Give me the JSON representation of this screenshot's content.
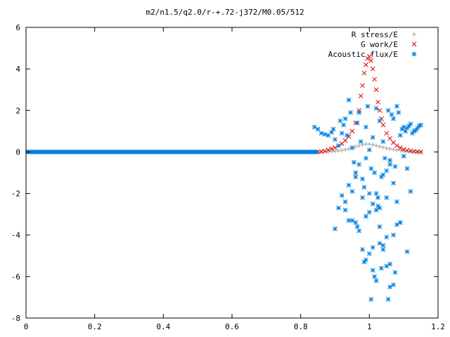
{
  "chart_data": {
    "type": "scatter",
    "title": "m2/n1.5/q2.0/r-+.72-j372/M0.05/512",
    "xlabel": "",
    "ylabel": "",
    "xlim": [
      0,
      1.2
    ],
    "ylim": [
      -8,
      6
    ],
    "x_ticks": [
      "0",
      "0.2",
      "0.4",
      "0.6",
      "0.8",
      "1",
      "1.2"
    ],
    "y_ticks": [
      "6",
      "4",
      "2",
      "0",
      "-2",
      "-4",
      "-6",
      "-8"
    ],
    "x_tick_values": [
      0,
      0.2,
      0.4,
      0.6,
      0.8,
      1.0,
      1.2
    ],
    "y_tick_values": [
      6,
      4,
      2,
      0,
      -2,
      -4,
      -6,
      -8
    ],
    "grid": false,
    "legend_position": "top-right",
    "series": [
      {
        "name": "R stress/E",
        "marker": "+",
        "color": "#a0a0a0",
        "x": [
          0.85,
          0.86,
          0.87,
          0.88,
          0.89,
          0.9,
          0.91,
          0.92,
          0.93,
          0.94,
          0.95,
          0.96,
          0.97,
          0.98,
          0.99,
          1.0,
          1.01,
          1.02,
          1.03,
          1.04,
          1.05,
          1.06,
          1.07,
          1.08,
          1.09,
          1.1,
          1.11,
          1.12,
          1.13,
          1.14,
          1.15
        ],
        "y": [
          0.0,
          0.0,
          0.0,
          0.01,
          0.02,
          0.03,
          0.05,
          0.08,
          0.11,
          0.15,
          0.2,
          0.25,
          0.3,
          0.35,
          0.38,
          0.38,
          0.35,
          0.3,
          0.26,
          0.22,
          0.18,
          0.15,
          0.12,
          0.09,
          0.07,
          0.05,
          0.03,
          0.02,
          0.01,
          0.0,
          0.0
        ]
      },
      {
        "name": "G work/E",
        "marker": "x",
        "color": "#e00000",
        "x": [
          0.85,
          0.86,
          0.87,
          0.88,
          0.89,
          0.9,
          0.91,
          0.92,
          0.93,
          0.94,
          0.95,
          0.96,
          0.97,
          0.975,
          0.98,
          0.985,
          0.99,
          0.995,
          1.0,
          1.005,
          1.01,
          1.015,
          1.02,
          1.025,
          1.03,
          1.035,
          1.04,
          1.05,
          1.06,
          1.07,
          1.08,
          1.09,
          1.1,
          1.11,
          1.12,
          1.13,
          1.14,
          1.15
        ],
        "y": [
          0.0,
          0.02,
          0.05,
          0.1,
          0.15,
          0.2,
          0.3,
          0.4,
          0.55,
          0.75,
          1.0,
          1.4,
          2.0,
          2.7,
          3.2,
          3.8,
          4.2,
          4.5,
          4.6,
          4.4,
          4.0,
          3.5,
          3.0,
          2.4,
          2.0,
          1.6,
          1.3,
          0.9,
          0.65,
          0.45,
          0.3,
          0.2,
          0.12,
          0.08,
          0.05,
          0.03,
          0.01,
          0.0
        ]
      },
      {
        "name": "Acoustic flux/E",
        "marker": "*",
        "color": "#0080e0",
        "baseline": {
          "from": 0.0,
          "to": 0.85,
          "y": 0.0
        },
        "x": [
          0.84,
          0.85,
          0.86,
          0.87,
          0.88,
          0.89,
          0.895,
          0.9,
          0.91,
          0.915,
          0.92,
          0.925,
          0.93,
          0.935,
          0.94,
          0.945,
          0.95,
          0.955,
          0.96,
          0.965,
          0.97,
          0.975,
          0.98,
          0.985,
          0.99,
          0.995,
          1.0,
          1.005,
          1.01,
          1.015,
          1.02,
          1.025,
          1.03,
          1.035,
          1.04,
          1.045,
          1.05,
          1.055,
          1.06,
          1.065,
          1.07,
          1.075,
          1.08,
          1.085,
          1.09,
          1.095,
          1.1,
          1.105,
          1.11,
          1.115,
          1.12,
          1.125,
          1.13,
          1.135,
          1.14,
          1.145,
          1.15,
          0.9,
          0.91,
          0.92,
          0.93,
          0.94,
          0.95,
          0.96,
          0.97,
          0.98,
          0.99,
          1.0,
          1.01,
          1.02,
          1.03,
          1.04,
          1.05,
          1.06,
          1.07,
          1.08,
          1.09,
          1.1,
          1.11,
          1.12,
          0.93,
          0.95,
          0.97,
          0.99,
          1.01,
          1.03,
          1.05,
          1.07,
          1.09,
          1.11,
          0.94,
          0.96,
          0.98,
          1.0,
          1.02,
          1.04,
          1.06,
          1.08,
          0.99,
          1.01,
          1.03,
          1.05,
          1.07,
          1.0,
          1.02,
          1.04,
          1.06,
          1.005,
          1.055,
          0.985,
          1.035,
          0.965,
          1.075,
          1.015,
          1.025
        ],
        "y": [
          1.2,
          1.1,
          0.9,
          0.85,
          0.8,
          0.95,
          1.1,
          0.6,
          0.3,
          1.5,
          0.9,
          1.3,
          1.6,
          0.8,
          2.5,
          1.9,
          0.2,
          -0.5,
          -1.0,
          1.4,
          1.9,
          0.5,
          -1.3,
          -1.7,
          1.2,
          2.2,
          0.1,
          -0.8,
          0.7,
          -1.0,
          2.1,
          -2.2,
          1.5,
          -1.2,
          0.5,
          -0.3,
          -0.9,
          2.0,
          -0.4,
          1.8,
          1.6,
          -0.7,
          2.2,
          1.9,
          0.8,
          1.1,
          1.2,
          1.0,
          1.15,
          1.25,
          1.35,
          0.9,
          1.0,
          1.05,
          1.15,
          1.25,
          1.3,
          -3.7,
          -2.7,
          -2.1,
          -2.4,
          -1.6,
          -1.9,
          -1.2,
          -0.6,
          -2.2,
          -0.3,
          -2.9,
          -2.5,
          -2.0,
          -2.7,
          -1.1,
          -2.2,
          -0.6,
          -1.5,
          -2.4,
          -3.4,
          -0.2,
          -0.8,
          -1.9,
          -2.8,
          -3.3,
          -3.8,
          -3.1,
          -4.6,
          -3.6,
          -4.1,
          -4.0,
          -3.4,
          -4.8,
          -3.3,
          -3.4,
          -4.7,
          -2.0,
          -2.8,
          -4.7,
          -5.4,
          -3.5,
          -5.2,
          -5.7,
          -4.4,
          -5.5,
          -6.4,
          -4.9,
          -6.2,
          -4.5,
          -6.5,
          -7.1,
          -7.1,
          -5.3,
          -5.6,
          -3.6,
          -5.8,
          -6.0,
          -2.6
        ]
      }
    ]
  }
}
